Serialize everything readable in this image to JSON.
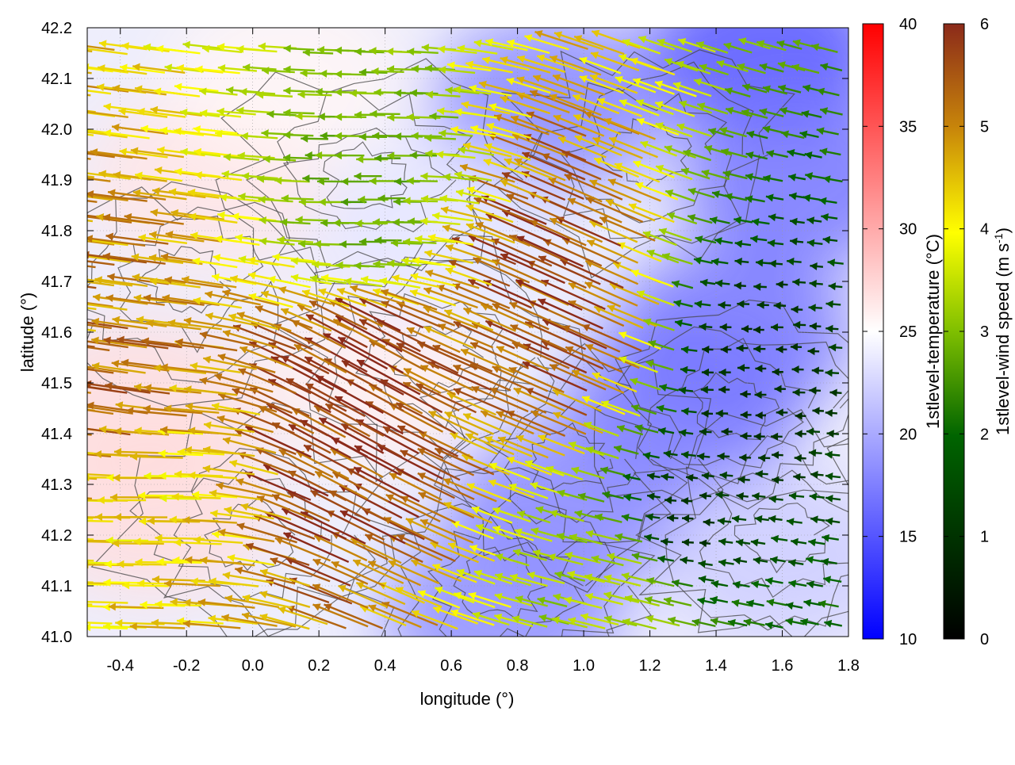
{
  "chart_data": {
    "type": "vector-field-heatmap",
    "xlabel": "longitude (°)",
    "ylabel": "latitude (°)",
    "xlim": [
      -0.5,
      1.8
    ],
    "ylim": [
      41.0,
      42.2
    ],
    "x_ticks": [
      "-0.4",
      "-0.2",
      "0.0",
      "0.2",
      "0.4",
      "0.6",
      "0.8",
      "1.0",
      "1.2",
      "1.4",
      "1.6",
      "1.8"
    ],
    "x_tick_values": [
      -0.4,
      -0.2,
      0.0,
      0.2,
      0.4,
      0.6,
      0.8,
      1.0,
      1.2,
      1.4,
      1.6,
      1.8
    ],
    "y_ticks": [
      "41.0",
      "41.1",
      "41.2",
      "41.3",
      "41.4",
      "41.5",
      "41.6",
      "41.7",
      "41.8",
      "41.9",
      "42.0",
      "42.1",
      "42.2"
    ],
    "y_tick_values": [
      41.0,
      41.1,
      41.2,
      41.3,
      41.4,
      41.5,
      41.6,
      41.7,
      41.8,
      41.9,
      42.0,
      42.1,
      42.2
    ],
    "grid": true,
    "temperature_colorbar": {
      "label": "1stlevel-temperature (°C)",
      "range": [
        10,
        40
      ],
      "ticks": [
        "10",
        "15",
        "20",
        "25",
        "30",
        "35",
        "40"
      ],
      "tick_values": [
        10,
        15,
        20,
        25,
        30,
        35,
        40
      ],
      "colors": [
        "#0000ff",
        "#ffffff",
        "#ff0000"
      ]
    },
    "wind_colorbar": {
      "label": "1stlevel-wind speed (m s",
      "label_sup": "-1",
      "label_end": ")",
      "range": [
        0,
        6
      ],
      "ticks": [
        "0",
        "1",
        "2",
        "3",
        "4",
        "5",
        "6"
      ],
      "tick_values": [
        0,
        1,
        2,
        3,
        4,
        5,
        6
      ],
      "colors": [
        "#000000",
        "#006400",
        "#7fbf00",
        "#ffff00",
        "#c8860a",
        "#8b2a1a"
      ]
    },
    "temperature_regions": [
      {
        "lon": -0.35,
        "lat": 41.45,
        "temp": 27
      },
      {
        "lon": -0.3,
        "lat": 41.25,
        "temp": 27
      },
      {
        "lon": -0.15,
        "lat": 41.9,
        "temp": 26.5
      },
      {
        "lon": 0.35,
        "lat": 41.5,
        "temp": 26
      },
      {
        "lon": 0.1,
        "lat": 42.1,
        "temp": 25.5
      },
      {
        "lon": 0.9,
        "lat": 42.05,
        "temp": 18
      },
      {
        "lon": 1.55,
        "lat": 42.15,
        "temp": 15
      },
      {
        "lon": 1.45,
        "lat": 41.6,
        "temp": 17
      },
      {
        "lon": 1.3,
        "lat": 41.45,
        "temp": 17
      },
      {
        "lon": 0.95,
        "lat": 41.25,
        "temp": 18
      },
      {
        "lon": 0.75,
        "lat": 41.05,
        "temp": 18.5
      },
      {
        "lon": 1.65,
        "lat": 41.9,
        "temp": 17
      },
      {
        "lon": 1.6,
        "lat": 41.15,
        "temp": 22
      },
      {
        "lon": 0.55,
        "lat": 41.8,
        "temp": 23.5
      }
    ],
    "wind_vectors_note": "",
    "wind_regions": [
      {
        "lon": 0.4,
        "lat": 41.48,
        "u": 1,
        "v": -0.55,
        "speed": 5.8
      },
      {
        "lon": 1.0,
        "lat": 41.62,
        "u": 1,
        "v": -0.45,
        "speed": 5.5
      },
      {
        "lon": -0.35,
        "lat": 41.45,
        "u": 1,
        "v": -0.15,
        "speed": 5.0
      },
      {
        "lon": -0.3,
        "lat": 41.3,
        "u": 1,
        "v": 0,
        "speed": 3.8
      },
      {
        "lon": 0.4,
        "lat": 41.85,
        "u": 1,
        "v": 0,
        "speed": 2.2
      },
      {
        "lon": 1.3,
        "lat": 41.2,
        "u": 0.1,
        "v": 0,
        "speed": 0.5
      },
      {
        "lon": 1.5,
        "lat": 41.5,
        "u": 0.2,
        "v": 0,
        "speed": 0.6
      },
      {
        "lon": 1.2,
        "lat": 41.08,
        "u": 1,
        "v": -0.25,
        "speed": 3.0
      }
    ]
  }
}
